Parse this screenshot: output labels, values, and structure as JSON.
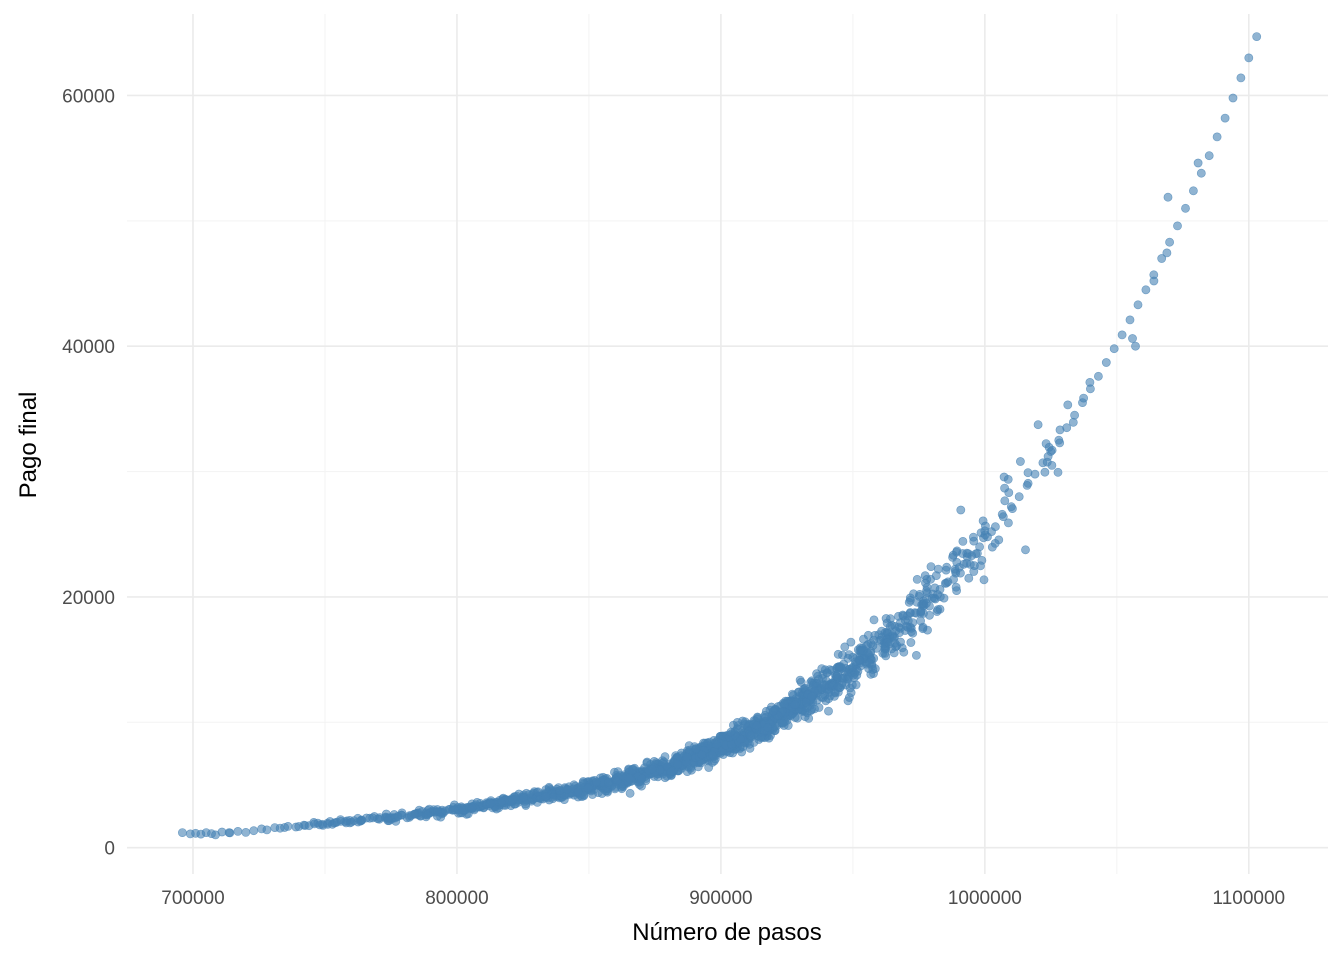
{
  "chart_data": {
    "type": "scatter",
    "title": "",
    "xlabel": "Número de pasos",
    "ylabel": "Pago final",
    "xlim": [
      675000,
      1130000
    ],
    "ylim": [
      -2100,
      66500
    ],
    "x_ticks": [
      700000,
      800000,
      900000,
      1000000,
      1100000
    ],
    "x_tick_labels": [
      "700000",
      "800000",
      "900000",
      "1000000",
      "1100000"
    ],
    "y_ticks": [
      0,
      20000,
      40000,
      60000
    ],
    "y_tick_labels": [
      "0",
      "20000",
      "40000",
      "60000"
    ],
    "x_minor_ticks": [
      750000,
      850000,
      950000,
      1050000
    ],
    "y_minor_ticks": [
      10000,
      30000,
      50000
    ],
    "grid": true,
    "legend": "none",
    "point_color": "#4682b4",
    "point_alpha": 0.6,
    "points": [
      [
        696000,
        1200
      ],
      [
        699000,
        1100
      ],
      [
        701000,
        1150
      ],
      [
        703000,
        1080
      ],
      [
        705000,
        1200
      ],
      [
        707000,
        1120
      ],
      [
        711000,
        1250
      ],
      [
        714000,
        1180
      ],
      [
        717000,
        1300
      ],
      [
        720000,
        1220
      ],
      [
        723000,
        1350
      ],
      [
        726000,
        1500
      ],
      [
        728000,
        1420
      ],
      [
        731000,
        1600
      ],
      [
        733000,
        1550
      ],
      [
        736000,
        1700
      ],
      [
        739000,
        1650
      ],
      [
        742000,
        1800
      ],
      [
        744000,
        1750
      ],
      [
        746000,
        1900
      ],
      [
        748000,
        1820
      ],
      [
        751000,
        1950
      ],
      [
        754000,
        2000
      ],
      [
        756000,
        2100
      ],
      [
        758000,
        1980
      ],
      [
        761000,
        2150
      ],
      [
        764000,
        2200
      ],
      [
        767000,
        2350
      ],
      [
        770000,
        2300
      ],
      [
        773000,
        2450
      ],
      [
        776000,
        2400
      ],
      [
        779000,
        2600
      ],
      [
        782000,
        2550
      ],
      [
        785000,
        2750
      ],
      [
        788000,
        2700
      ],
      [
        791000,
        2900
      ],
      [
        794000,
        2850
      ],
      [
        797000,
        3050
      ],
      [
        800000,
        3100
      ],
      [
        803000,
        3000
      ],
      [
        806000,
        3300
      ],
      [
        809000,
        3250
      ],
      [
        812000,
        3500
      ],
      [
        815000,
        3450
      ],
      [
        818000,
        3700
      ],
      [
        821000,
        3650
      ],
      [
        824000,
        3900
      ],
      [
        827000,
        3850
      ],
      [
        830000,
        4100
      ],
      [
        833000,
        4050
      ],
      [
        836000,
        4300
      ],
      [
        839000,
        4400
      ],
      [
        842000,
        4600
      ],
      [
        845000,
        4500
      ],
      [
        848000,
        4800
      ],
      [
        851000,
        4900
      ],
      [
        854000,
        5100
      ],
      [
        857000,
        5000
      ],
      [
        860000,
        5400
      ],
      [
        863000,
        5300
      ],
      [
        866000,
        5700
      ],
      [
        869000,
        5600
      ],
      [
        872000,
        6000
      ],
      [
        875000,
        6200
      ],
      [
        878000,
        6400
      ],
      [
        881000,
        6300
      ],
      [
        884000,
        6800
      ],
      [
        887000,
        7000
      ],
      [
        890000,
        7200
      ],
      [
        893000,
        7500
      ],
      [
        896000,
        7700
      ],
      [
        899000,
        8000
      ],
      [
        902000,
        8300
      ],
      [
        905000,
        8600
      ],
      [
        908000,
        8800
      ],
      [
        911000,
        9200
      ],
      [
        914000,
        9500
      ],
      [
        917000,
        9900
      ],
      [
        920000,
        10200
      ],
      [
        923000,
        10600
      ],
      [
        926000,
        11000
      ],
      [
        929000,
        11400
      ],
      [
        932000,
        11800
      ],
      [
        935000,
        12200
      ],
      [
        938000,
        12600
      ],
      [
        941000,
        13000
      ],
      [
        944000,
        13500
      ],
      [
        947000,
        14000
      ],
      [
        950000,
        14400
      ],
      [
        953000,
        14900
      ],
      [
        956000,
        15400
      ],
      [
        959000,
        15900
      ],
      [
        962000,
        16400
      ],
      [
        965000,
        17000
      ],
      [
        968000,
        17500
      ],
      [
        971000,
        18100
      ],
      [
        974000,
        18700
      ],
      [
        977000,
        19300
      ],
      [
        980000,
        19900
      ],
      [
        983000,
        20600
      ],
      [
        986000,
        21200
      ],
      [
        989000,
        21900
      ],
      [
        992000,
        22600
      ],
      [
        995000,
        23300
      ],
      [
        998000,
        24000
      ],
      [
        1001000,
        24800
      ],
      [
        1004000,
        25600
      ],
      [
        1007000,
        26400
      ],
      [
        1010000,
        27200
      ],
      [
        1013000,
        28000
      ],
      [
        1016000,
        28900
      ],
      [
        1019000,
        29800
      ],
      [
        1022000,
        30700
      ],
      [
        1025000,
        31600
      ],
      [
        1028000,
        32500
      ],
      [
        1031000,
        33500
      ],
      [
        1034000,
        34500
      ],
      [
        1037000,
        35500
      ],
      [
        1040000,
        36600
      ],
      [
        1043000,
        37600
      ],
      [
        1046000,
        38700
      ],
      [
        1049000,
        39800
      ],
      [
        1052000,
        40900
      ],
      [
        1055000,
        42100
      ],
      [
        1058000,
        43300
      ],
      [
        1061000,
        44500
      ],
      [
        1064000,
        45700
      ],
      [
        1067000,
        47000
      ],
      [
        1070000,
        48300
      ],
      [
        1073000,
        49600
      ],
      [
        1076000,
        51000
      ],
      [
        1079000,
        52400
      ],
      [
        1082000,
        53800
      ],
      [
        1085000,
        55200
      ],
      [
        1088000,
        56700
      ],
      [
        1091000,
        58200
      ],
      [
        1094000,
        59800
      ],
      [
        1097000,
        61400
      ],
      [
        1100000,
        63000
      ],
      [
        1103000,
        64700
      ]
    ]
  }
}
